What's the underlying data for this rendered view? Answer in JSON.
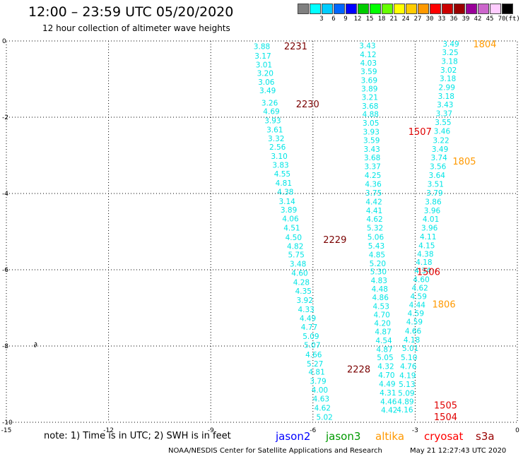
{
  "header": {
    "title": "12:00 – 23:59 UTC 05/20/2020",
    "subtitle": "12 hour collection of altimeter wave heights"
  },
  "colorbar": {
    "unit": "(ft)",
    "bins": [
      {
        "label": "",
        "color": "#808080"
      },
      {
        "label": "3",
        "color": "#00ffff"
      },
      {
        "label": "6",
        "color": "#00ccff"
      },
      {
        "label": "9",
        "color": "#0066ff"
      },
      {
        "label": "12",
        "color": "#0000ff"
      },
      {
        "label": "15",
        "color": "#00cc00"
      },
      {
        "label": "18",
        "color": "#00ff00"
      },
      {
        "label": "21",
        "color": "#66ff00"
      },
      {
        "label": "24",
        "color": "#ffff00"
      },
      {
        "label": "27",
        "color": "#ffcc00"
      },
      {
        "label": "30",
        "color": "#ff9900"
      },
      {
        "label": "33",
        "color": "#ff0000"
      },
      {
        "label": "36",
        "color": "#cc0000"
      },
      {
        "label": "39",
        "color": "#990000"
      },
      {
        "label": "42",
        "color": "#990099"
      },
      {
        "label": "45",
        "color": "#cc66cc"
      },
      {
        "label": "70",
        "color": "#ffccff"
      },
      {
        "label": "",
        "color": "#000000"
      }
    ]
  },
  "chart_data": {
    "type": "scatter",
    "title": "12:00 – 23:59 UTC 05/20/2020",
    "xlim": [
      -15,
      0
    ],
    "ylim": [
      -10,
      0
    ],
    "x_ticks": [
      -15,
      -12,
      -9,
      -6,
      -3,
      0
    ],
    "y_ticks": [
      0,
      -2,
      -4,
      -6,
      -8,
      -10
    ],
    "grid": true,
    "point_color": "#00e5e5",
    "land_marker": {
      "x": -14.2,
      "y": -7.95,
      "symbol": "∂"
    },
    "series": [
      {
        "name": "jason2",
        "values": [
          {
            "x": -7.5,
            "y": -0.14,
            "v": "3.88"
          },
          {
            "x": -7.47,
            "y": -0.39,
            "v": "3.17"
          },
          {
            "x": -7.44,
            "y": -0.62,
            "v": "3.01"
          },
          {
            "x": -7.4,
            "y": -0.84,
            "v": "3.20"
          },
          {
            "x": -7.37,
            "y": -1.07,
            "v": "3.06"
          },
          {
            "x": -7.33,
            "y": -1.3,
            "v": "3.49"
          },
          {
            "x": -7.27,
            "y": -1.62,
            "v": "3.26"
          },
          {
            "x": -7.22,
            "y": -1.84,
            "v": "4.69"
          },
          {
            "x": -7.18,
            "y": -2.08,
            "v": "3.93"
          },
          {
            "x": -7.12,
            "y": -2.32,
            "v": "3.61"
          },
          {
            "x": -7.08,
            "y": -2.56,
            "v": "3.32"
          },
          {
            "x": -7.04,
            "y": -2.78,
            "v": "2.56"
          },
          {
            "x": -6.99,
            "y": -3.02,
            "v": "3.10"
          },
          {
            "x": -6.95,
            "y": -3.25,
            "v": "3.83"
          },
          {
            "x": -6.9,
            "y": -3.48,
            "v": "4.55"
          },
          {
            "x": -6.86,
            "y": -3.72,
            "v": "4.81"
          },
          {
            "x": -6.81,
            "y": -3.95,
            "v": "4.38"
          },
          {
            "x": -6.76,
            "y": -4.2,
            "v": "3.14"
          },
          {
            "x": -6.71,
            "y": -4.43,
            "v": "3.89"
          },
          {
            "x": -6.66,
            "y": -4.66,
            "v": "4.06"
          },
          {
            "x": -6.62,
            "y": -4.9,
            "v": "4.51"
          },
          {
            "x": -6.57,
            "y": -5.15,
            "v": "4.50"
          },
          {
            "x": -6.52,
            "y": -5.38,
            "v": "4.82"
          },
          {
            "x": -6.49,
            "y": -5.6,
            "v": "5.75"
          },
          {
            "x": -6.44,
            "y": -5.84,
            "v": "3.48"
          },
          {
            "x": -6.39,
            "y": -6.08,
            "v": "4.60"
          },
          {
            "x": -6.34,
            "y": -6.32,
            "v": "4.28"
          },
          {
            "x": -6.28,
            "y": -6.56,
            "v": "4.35"
          },
          {
            "x": -6.24,
            "y": -6.8,
            "v": "3.92"
          },
          {
            "x": -6.2,
            "y": -7.04,
            "v": "4.33"
          },
          {
            "x": -6.15,
            "y": -7.27,
            "v": "4.49"
          },
          {
            "x": -6.11,
            "y": -7.5,
            "v": "4.77"
          },
          {
            "x": -6.06,
            "y": -7.74,
            "v": "5.09"
          },
          {
            "x": -6.02,
            "y": -7.97,
            "v": "5.07"
          },
          {
            "x": -5.98,
            "y": -8.22,
            "v": "4.66"
          },
          {
            "x": -5.94,
            "y": -8.46,
            "v": "5.27"
          },
          {
            "x": -5.89,
            "y": -8.68,
            "v": "4.81"
          },
          {
            "x": -5.85,
            "y": -8.92,
            "v": "3.79"
          },
          {
            "x": -5.8,
            "y": -9.15,
            "v": "4.00"
          },
          {
            "x": -5.76,
            "y": -9.38,
            "v": "4.63"
          },
          {
            "x": -5.72,
            "y": -9.62,
            "v": "4.62"
          },
          {
            "x": -5.66,
            "y": -9.86,
            "v": "5.02"
          }
        ]
      },
      {
        "name": "jason3",
        "values": [
          {
            "x": -4.4,
            "y": -0.12,
            "v": "3.43"
          },
          {
            "x": -4.38,
            "y": -0.35,
            "v": "4.12"
          },
          {
            "x": -4.37,
            "y": -0.57,
            "v": "4.03"
          },
          {
            "x": -4.36,
            "y": -0.8,
            "v": "3.59"
          },
          {
            "x": -4.35,
            "y": -1.03,
            "v": "3.69"
          },
          {
            "x": -4.34,
            "y": -1.25,
            "v": "3.89"
          },
          {
            "x": -4.33,
            "y": -1.47,
            "v": "3.21"
          },
          {
            "x": -4.32,
            "y": -1.7,
            "v": "3.68"
          },
          {
            "x": -4.31,
            "y": -1.92,
            "v": "4.88"
          },
          {
            "x": -4.3,
            "y": -2.15,
            "v": "3.05"
          },
          {
            "x": -4.29,
            "y": -2.38,
            "v": "3.93"
          },
          {
            "x": -4.28,
            "y": -2.6,
            "v": "3.59"
          },
          {
            "x": -4.27,
            "y": -2.83,
            "v": "3.43"
          },
          {
            "x": -4.26,
            "y": -3.06,
            "v": "3.68"
          },
          {
            "x": -4.25,
            "y": -3.29,
            "v": "3.37"
          },
          {
            "x": -4.24,
            "y": -3.52,
            "v": "4.25"
          },
          {
            "x": -4.23,
            "y": -3.75,
            "v": "4.36"
          },
          {
            "x": -4.22,
            "y": -3.98,
            "v": "3.75"
          },
          {
            "x": -4.21,
            "y": -4.21,
            "v": "4.42"
          },
          {
            "x": -4.2,
            "y": -4.44,
            "v": "4.41"
          },
          {
            "x": -4.19,
            "y": -4.67,
            "v": "4.62"
          },
          {
            "x": -4.18,
            "y": -4.9,
            "v": "5.32"
          },
          {
            "x": -4.16,
            "y": -5.14,
            "v": "5.06"
          },
          {
            "x": -4.14,
            "y": -5.37,
            "v": "5.43"
          },
          {
            "x": -4.12,
            "y": -5.6,
            "v": "4.85"
          },
          {
            "x": -4.1,
            "y": -5.83,
            "v": "5.20"
          },
          {
            "x": -4.08,
            "y": -6.05,
            "v": "5.30"
          },
          {
            "x": -4.06,
            "y": -6.28,
            "v": "4.83"
          },
          {
            "x": -4.04,
            "y": -6.5,
            "v": "4.48"
          },
          {
            "x": -4.02,
            "y": -6.72,
            "v": "4.86"
          },
          {
            "x": -4.0,
            "y": -6.95,
            "v": "4.53"
          },
          {
            "x": -3.98,
            "y": -7.18,
            "v": "4.70"
          },
          {
            "x": -3.96,
            "y": -7.4,
            "v": "4.20"
          },
          {
            "x": -3.94,
            "y": -7.62,
            "v": "4.87"
          },
          {
            "x": -3.92,
            "y": -7.85,
            "v": "4.54"
          },
          {
            "x": -3.9,
            "y": -8.08,
            "v": "4.87"
          },
          {
            "x": -3.88,
            "y": -8.3,
            "v": "5.05"
          },
          {
            "x": -3.86,
            "y": -8.53,
            "v": "4.32"
          },
          {
            "x": -3.84,
            "y": -8.76,
            "v": "4.70"
          },
          {
            "x": -3.82,
            "y": -8.99,
            "v": "4.49"
          },
          {
            "x": -3.8,
            "y": -9.22,
            "v": "4.31"
          },
          {
            "x": -3.78,
            "y": -9.45,
            "v": "4.46"
          },
          {
            "x": -3.76,
            "y": -9.68,
            "v": "4.42"
          }
        ]
      },
      {
        "name": "altika",
        "values": [
          {
            "x": -1.95,
            "y": -0.07,
            "v": "3.49"
          },
          {
            "x": -1.97,
            "y": -0.3,
            "v": "3.25"
          },
          {
            "x": -1.99,
            "y": -0.53,
            "v": "3.18"
          },
          {
            "x": -2.02,
            "y": -0.76,
            "v": "3.02"
          },
          {
            "x": -2.04,
            "y": -0.98,
            "v": "3.18"
          },
          {
            "x": -2.07,
            "y": -1.21,
            "v": "2.99"
          },
          {
            "x": -2.09,
            "y": -1.44,
            "v": "3.18"
          },
          {
            "x": -2.12,
            "y": -1.67,
            "v": "3.43"
          },
          {
            "x": -2.15,
            "y": -1.9,
            "v": "3.37"
          },
          {
            "x": -2.18,
            "y": -2.13,
            "v": "3.55"
          },
          {
            "x": -2.21,
            "y": -2.36,
            "v": "3.46"
          },
          {
            "x": -2.24,
            "y": -2.6,
            "v": "3.22"
          },
          {
            "x": -2.27,
            "y": -2.83,
            "v": "3.49"
          },
          {
            "x": -2.3,
            "y": -3.06,
            "v": "3.74"
          },
          {
            "x": -2.33,
            "y": -3.29,
            "v": "3.56"
          },
          {
            "x": -2.36,
            "y": -3.52,
            "v": "3.64"
          },
          {
            "x": -2.4,
            "y": -3.75,
            "v": "3.51"
          },
          {
            "x": -2.43,
            "y": -3.98,
            "v": "3.79"
          },
          {
            "x": -2.47,
            "y": -4.21,
            "v": "3.86"
          },
          {
            "x": -2.5,
            "y": -4.44,
            "v": "3.96"
          },
          {
            "x": -2.54,
            "y": -4.67,
            "v": "4.01"
          },
          {
            "x": -2.58,
            "y": -4.9,
            "v": "3.96"
          },
          {
            "x": -2.62,
            "y": -5.13,
            "v": "4.11"
          },
          {
            "x": -2.66,
            "y": -5.36,
            "v": "4.15"
          },
          {
            "x": -2.7,
            "y": -5.58,
            "v": "4.38"
          },
          {
            "x": -2.74,
            "y": -5.8,
            "v": "4.18"
          },
          {
            "x": -2.78,
            "y": -6.02,
            "v": "4.34"
          },
          {
            "x": -2.82,
            "y": -6.25,
            "v": "4.60"
          },
          {
            "x": -2.86,
            "y": -6.47,
            "v": "4.62"
          },
          {
            "x": -2.9,
            "y": -6.69,
            "v": "4.59"
          },
          {
            "x": -2.94,
            "y": -6.92,
            "v": "4.44"
          },
          {
            "x": -2.98,
            "y": -7.14,
            "v": "4.59"
          },
          {
            "x": -3.02,
            "y": -7.36,
            "v": "4.59"
          },
          {
            "x": -3.06,
            "y": -7.6,
            "v": "4.66"
          },
          {
            "x": -3.1,
            "y": -7.83,
            "v": "4.18"
          },
          {
            "x": -3.14,
            "y": -8.06,
            "v": "5.01"
          },
          {
            "x": -3.18,
            "y": -8.3,
            "v": "5.10"
          },
          {
            "x": -3.2,
            "y": -8.53,
            "v": "4.76"
          },
          {
            "x": -3.22,
            "y": -8.77,
            "v": "4.19"
          },
          {
            "x": -3.24,
            "y": -9.0,
            "v": "5.13"
          },
          {
            "x": -3.26,
            "y": -9.23,
            "v": "5.09"
          },
          {
            "x": -3.28,
            "y": -9.45,
            "v": "4.89"
          },
          {
            "x": -3.3,
            "y": -9.67,
            "v": "4.16"
          }
        ]
      }
    ],
    "pass_labels": [
      {
        "text": "2231",
        "x": -6.85,
        "y": -0.13,
        "color": "#7a0000"
      },
      {
        "text": "2230",
        "x": -6.5,
        "y": -1.65,
        "color": "#7a0000"
      },
      {
        "text": "2229",
        "x": -5.7,
        "y": -5.2,
        "color": "#7a0000"
      },
      {
        "text": "2228",
        "x": -5.0,
        "y": -8.6,
        "color": "#7a0000"
      },
      {
        "text": "1507",
        "x": -3.2,
        "y": -2.37,
        "color": "#e00000"
      },
      {
        "text": "1506",
        "x": -2.95,
        "y": -6.05,
        "color": "#e00000"
      },
      {
        "text": "1505",
        "x": -2.45,
        "y": -9.55,
        "color": "#e00000"
      },
      {
        "text": "1504",
        "x": -2.45,
        "y": -9.85,
        "color": "#e00000"
      },
      {
        "text": "1804",
        "x": -1.3,
        "y": -0.07,
        "color": "#ff9900"
      },
      {
        "text": "1805",
        "x": -1.9,
        "y": -3.15,
        "color": "#ff9900"
      },
      {
        "text": "1806",
        "x": -2.5,
        "y": -6.9,
        "color": "#ff9900"
      }
    ]
  },
  "note": "note:  1) Time is in UTC;  2) SWH is in feet",
  "legend": [
    {
      "name": "jason2",
      "color": "#0000ff"
    },
    {
      "name": "jason3",
      "color": "#009900"
    },
    {
      "name": "altika",
      "color": "#ff9900"
    },
    {
      "name": "cryosat",
      "color": "#ff0000"
    },
    {
      "name": "s3a",
      "color": "#990000"
    }
  ],
  "footer": {
    "credit": "NOAA/NESDIS Center for Satellite Applications and Research",
    "timestamp": "May 21 12:27:43 UTC 2020"
  }
}
